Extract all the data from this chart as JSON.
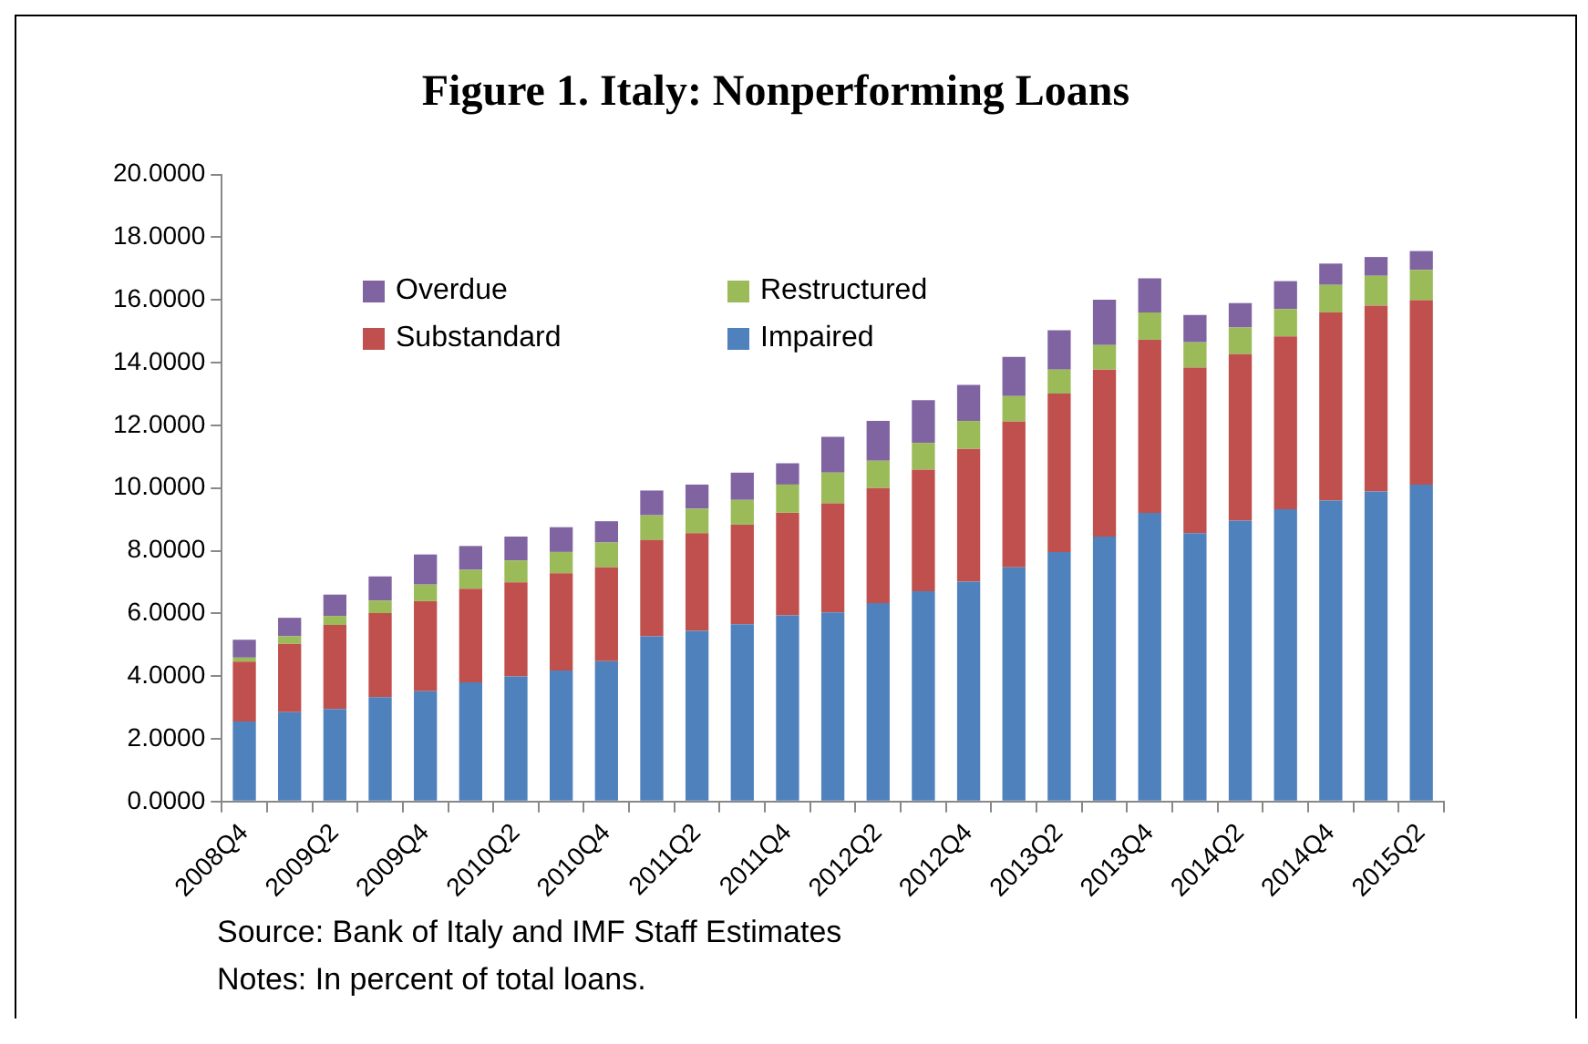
{
  "chart_data": {
    "type": "bar",
    "title": "Figure 1. Italy: Nonperforming Loans",
    "stacked": true,
    "legend": "top left",
    "categories": [
      "2008Q4",
      null,
      "2009Q2",
      null,
      "2009Q4",
      null,
      "2010Q2",
      null,
      "2010Q4",
      null,
      "2011Q2",
      null,
      "2011Q4",
      null,
      "2012Q2",
      null,
      "2012Q4",
      null,
      "2013Q2",
      null,
      "2013Q4",
      null,
      "2014Q2",
      null,
      "2014Q4",
      null,
      "2015Q2"
    ],
    "series": [
      {
        "name": "Impaired",
        "color": "#4f81bd",
        "values": [
          2.55,
          2.85,
          2.95,
          3.33,
          3.52,
          3.8,
          3.99,
          4.18,
          4.48,
          5.27,
          5.44,
          5.65,
          5.94,
          6.03,
          6.33,
          6.71,
          7.01,
          7.47,
          7.96,
          8.45,
          9.21,
          8.56,
          8.96,
          9.32,
          9.6,
          9.89,
          10.11
        ]
      },
      {
        "name": "Substandard",
        "color": "#c0504d",
        "values": [
          1.91,
          2.18,
          2.68,
          2.68,
          2.87,
          2.99,
          3.0,
          3.1,
          2.99,
          3.07,
          3.12,
          3.18,
          3.27,
          3.48,
          3.67,
          3.88,
          4.24,
          4.65,
          5.05,
          5.33,
          5.52,
          5.28,
          5.31,
          5.52,
          6.0,
          5.93,
          5.88
        ]
      },
      {
        "name": "Restructured",
        "color": "#9bbb59",
        "values": [
          0.13,
          0.24,
          0.29,
          0.4,
          0.53,
          0.6,
          0.7,
          0.68,
          0.79,
          0.79,
          0.78,
          0.79,
          0.9,
          0.98,
          0.87,
          0.85,
          0.89,
          0.81,
          0.77,
          0.78,
          0.87,
          0.81,
          0.85,
          0.87,
          0.88,
          0.95,
          0.97
        ]
      },
      {
        "name": "Overdue",
        "color": "#8064a2",
        "values": [
          0.57,
          0.59,
          0.68,
          0.77,
          0.96,
          0.76,
          0.76,
          0.79,
          0.68,
          0.79,
          0.77,
          0.87,
          0.68,
          1.14,
          1.27,
          1.36,
          1.15,
          1.25,
          1.25,
          1.45,
          1.09,
          0.87,
          0.78,
          0.89,
          0.68,
          0.6,
          0.6
        ]
      }
    ],
    "ylim": [
      0,
      20
    ],
    "yticks": [
      {
        "value": 0,
        "label": "0.0000"
      },
      {
        "value": 2,
        "label": "2.0000"
      },
      {
        "value": 4,
        "label": "4.0000"
      },
      {
        "value": 6,
        "label": "6.0000"
      },
      {
        "value": 8,
        "label": "8.0000"
      },
      {
        "value": 10,
        "label": "10.0000"
      },
      {
        "value": 12,
        "label": "12.0000"
      },
      {
        "value": 14,
        "label": "14.0000"
      },
      {
        "value": 16,
        "label": "16.0000"
      },
      {
        "value": 18,
        "label": "18.0000"
      },
      {
        "value": 20,
        "label": "20.0000"
      }
    ],
    "annotations": [
      "Source: Bank of Italy and IMF Staff Estimates",
      "Notes: In percent of total loans."
    ]
  }
}
